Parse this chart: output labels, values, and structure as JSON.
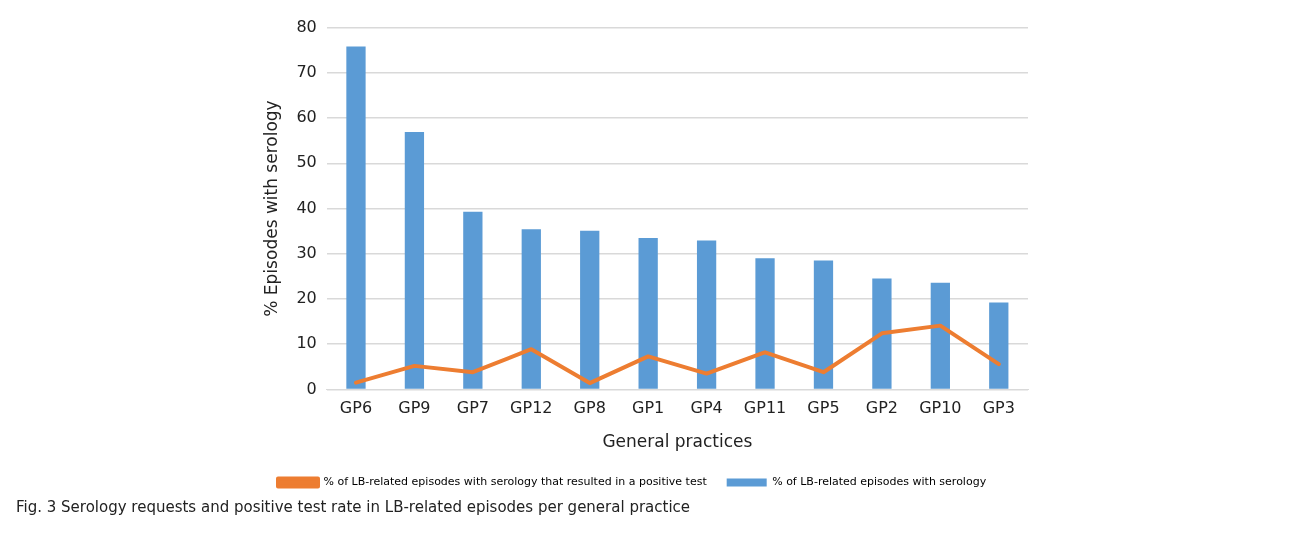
{
  "chart_data": {
    "type": "bar",
    "xlabel": "General practices",
    "ylabel": "% Episodes with serology",
    "categories": [
      "GP6",
      "GP9",
      "GP7",
      "GP12",
      "GP8",
      "GP1",
      "GP4",
      "GP11",
      "GP5",
      "GP2",
      "GP10",
      "GP3"
    ],
    "series": [
      {
        "name": "% of LB-related episodes with serology",
        "color": "#5b9bd5",
        "values": [
          75.8,
          56.9,
          39.3,
          35.4,
          35.1,
          33.5,
          32.9,
          29.0,
          28.5,
          24.5,
          23.6,
          19.2
        ]
      },
      {
        "name": "% of LB-related episodes with serology that resulted in a positive test",
        "type": "line",
        "color": "#ed7d31",
        "values": [
          1.5,
          5.2,
          3.8,
          8.9,
          1.4,
          7.3,
          3.5,
          8.2,
          3.8,
          12.4,
          14.1,
          5.6
        ]
      }
    ],
    "ylim": [
      0,
      80
    ],
    "yticks": [
      0,
      10,
      20,
      30,
      40,
      50,
      60,
      70,
      80
    ],
    "grid": "y",
    "legend": "bottom",
    "marker": "none",
    "annotations": [
      "Fig. 3 Serology requests and positive test rate in LB-related episodes per general practice"
    ]
  }
}
